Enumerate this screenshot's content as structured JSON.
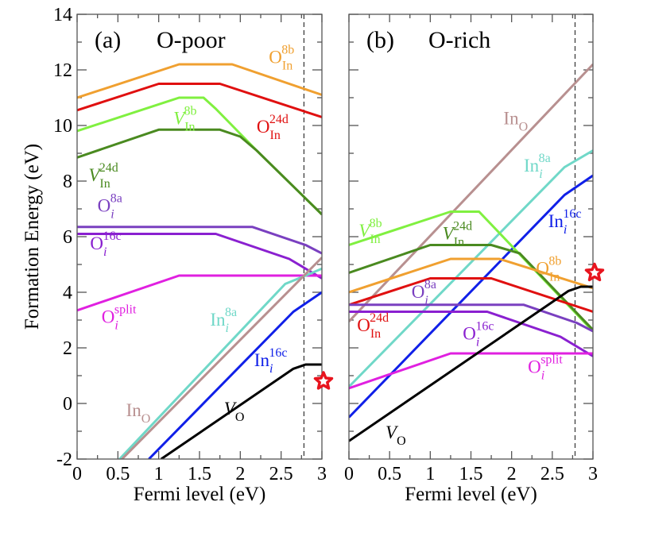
{
  "chart_data": [
    {
      "type": "line",
      "panel_label": "(a)",
      "title": "O-poor",
      "xlabel": "Fermi level (eV)",
      "ylabel": "Formation Energy (eV)",
      "xlim": [
        0,
        3
      ],
      "ylim": [
        -2,
        14
      ],
      "xticks": [
        "0",
        "0.5",
        "1",
        "1.5",
        "2",
        "2.5",
        "3"
      ],
      "yticks": [
        "-2",
        "0",
        "2",
        "4",
        "6",
        "8",
        "10",
        "12",
        "14"
      ],
      "vline_x": 2.78,
      "marker": {
        "shape": "star",
        "color": "#e8141e",
        "x": 3.0,
        "y": 0.8
      },
      "series": [
        {
          "name": "O_In^8b",
          "base": "O",
          "sub": "In",
          "sup": "8b",
          "color": "#f0a030",
          "label_at": [
            2.35,
            12.25
          ],
          "x": [
            0,
            1.25,
            1.9,
            3
          ],
          "y": [
            11.0,
            12.2,
            12.2,
            11.1
          ]
        },
        {
          "name": "O_In^24d",
          "base": "O",
          "sub": "In",
          "sup": "24d",
          "color": "#e01010",
          "label_at": [
            2.2,
            9.75
          ],
          "x": [
            0,
            1.0,
            1.75,
            3
          ],
          "y": [
            10.55,
            11.5,
            11.5,
            10.3
          ]
        },
        {
          "name": "V_In^8b",
          "base": "V",
          "sub": "In",
          "sup": "8b",
          "color": "#80f040",
          "italic": true,
          "label_at": [
            1.18,
            10.05
          ],
          "x": [
            0,
            1.25,
            1.55,
            1.7,
            2.2,
            3
          ],
          "y": [
            9.8,
            11.0,
            11.0,
            10.6,
            9.1,
            6.8
          ]
        },
        {
          "name": "V_In^24d",
          "base": "V",
          "sub": "In",
          "sup": "24d",
          "color": "#4a8a20",
          "italic": true,
          "label_at": [
            0.14,
            8.0
          ],
          "x": [
            0,
            1.0,
            1.75,
            2.0,
            2.2,
            3
          ],
          "y": [
            8.85,
            9.85,
            9.85,
            9.6,
            9.1,
            6.8
          ]
        },
        {
          "name": "O_i^8a",
          "base": "O",
          "sub": "i",
          "sup": "8a",
          "color": "#7a40c0",
          "italic_sub": true,
          "label_at": [
            0.25,
            6.9
          ],
          "x": [
            0,
            2.15,
            2.8,
            3
          ],
          "y": [
            6.35,
            6.35,
            5.7,
            5.4
          ]
        },
        {
          "name": "O_i^16c",
          "base": "O",
          "sub": "i",
          "sup": "16c",
          "color": "#8a20d0",
          "italic_sub": true,
          "label_at": [
            0.16,
            5.55
          ],
          "x": [
            0,
            1.7,
            2.6,
            3
          ],
          "y": [
            6.1,
            6.1,
            5.2,
            4.5
          ]
        },
        {
          "name": "O_i^split",
          "base": "O",
          "sub": "i",
          "sup": "split",
          "color": "#e020e0",
          "italic_sub": true,
          "label_at": [
            0.3,
            2.9
          ],
          "x": [
            0,
            1.25,
            3
          ],
          "y": [
            3.35,
            4.6,
            4.6
          ]
        },
        {
          "name": "In_i^8a",
          "base": "In",
          "sub": "i",
          "sup": "8a",
          "color": "#70d8c8",
          "italic_sub": true,
          "label_at": [
            1.63,
            2.8
          ],
          "x": [
            0.52,
            2.55,
            2.8,
            3
          ],
          "y": [
            -2.0,
            4.3,
            4.6,
            4.85
          ]
        },
        {
          "name": "In_O",
          "base": "In",
          "sub": "O",
          "sup": "",
          "color": "#b89090",
          "label_at": [
            0.6,
            -0.45
          ],
          "x": [
            0.55,
            3
          ],
          "y": [
            -2.0,
            5.25
          ]
        },
        {
          "name": "In_i^16c",
          "base": "In",
          "sub": "i",
          "sup": "16c",
          "color": "#1020e8",
          "italic_sub": true,
          "label_at": [
            2.17,
            1.35
          ],
          "x": [
            0.88,
            2.65,
            3
          ],
          "y": [
            -2.0,
            3.3,
            4.0
          ]
        },
        {
          "name": "V_O",
          "base": "V",
          "sub": "O",
          "sup": "",
          "color": "#000000",
          "italic": true,
          "label_at": [
            1.8,
            -0.4
          ],
          "x": [
            1.03,
            2.65,
            2.8,
            3
          ],
          "y": [
            -2.0,
            1.25,
            1.4,
            1.4
          ]
        }
      ]
    },
    {
      "type": "line",
      "panel_label": "(b)",
      "title": "O-rich",
      "xlabel": "Fermi level (eV)",
      "ylabel": "",
      "xlim": [
        0,
        3
      ],
      "ylim": [
        -2,
        14
      ],
      "xticks": [
        "0",
        "0.5",
        "1",
        "1.5",
        "2",
        "2.5",
        "3"
      ],
      "yticks": [],
      "vline_x": 2.78,
      "marker": {
        "shape": "star",
        "color": "#e8141e",
        "x": 3.0,
        "y": 4.7
      },
      "series": [
        {
          "name": "In_O",
          "base": "In",
          "sub": "O",
          "sup": "",
          "color": "#b89090",
          "label_at": [
            1.9,
            10.05
          ],
          "x": [
            0,
            3
          ],
          "y": [
            2.95,
            12.2
          ]
        },
        {
          "name": "In_i^8a",
          "base": "In",
          "sub": "i",
          "sup": "8a",
          "color": "#70d8c8",
          "italic_sub": true,
          "label_at": [
            2.15,
            8.35
          ],
          "x": [
            0,
            2.65,
            3
          ],
          "y": [
            0.6,
            8.5,
            9.1
          ]
        },
        {
          "name": "In_i^16c",
          "base": "In",
          "sub": "i",
          "sup": "16c",
          "color": "#1020e8",
          "italic_sub": true,
          "label_at": [
            2.45,
            6.35
          ],
          "x": [
            0,
            2.65,
            3
          ],
          "y": [
            -0.5,
            7.5,
            8.2
          ]
        },
        {
          "name": "V_In^8b",
          "base": "V",
          "sub": "In",
          "sup": "8b",
          "color": "#80f040",
          "italic": true,
          "label_at": [
            0.12,
            6.0
          ],
          "x": [
            0,
            1.25,
            1.6,
            3
          ],
          "y": [
            5.7,
            6.9,
            6.9,
            2.6
          ]
        },
        {
          "name": "V_In^24d",
          "base": "V",
          "sub": "In",
          "sup": "24d",
          "color": "#4a8a20",
          "italic": true,
          "label_at": [
            1.15,
            5.9
          ],
          "x": [
            0,
            1.0,
            1.75,
            2.1,
            3
          ],
          "y": [
            4.7,
            5.7,
            5.7,
            5.4,
            2.65
          ]
        },
        {
          "name": "O_In^8b",
          "base": "O",
          "sub": "In",
          "sup": "8b",
          "color": "#f0a030",
          "italic": false,
          "label_at": [
            2.3,
            4.65
          ],
          "x": [
            0,
            1.25,
            1.85,
            3
          ],
          "y": [
            4.0,
            5.2,
            5.2,
            4.15
          ]
        },
        {
          "name": "O_In^24d",
          "base": "O",
          "sub": "In",
          "sup": "24d",
          "color": "#e01010",
          "label_at": [
            0.1,
            2.6
          ],
          "x": [
            0,
            1.0,
            1.75,
            3
          ],
          "y": [
            3.55,
            4.5,
            4.5,
            3.3
          ]
        },
        {
          "name": "O_i^8a",
          "base": "O",
          "sub": "i",
          "sup": "8a",
          "color": "#7a40c0",
          "italic_sub": true,
          "label_at": [
            0.77,
            3.8
          ],
          "x": [
            0,
            2.15,
            2.8,
            3
          ],
          "y": [
            3.55,
            3.55,
            2.9,
            2.6
          ]
        },
        {
          "name": "O_i^16c",
          "base": "O",
          "sub": "i",
          "sup": "16c",
          "color": "#8a20d0",
          "italic_sub": true,
          "label_at": [
            1.4,
            2.3
          ],
          "x": [
            0,
            1.7,
            2.6,
            3
          ],
          "y": [
            3.3,
            3.3,
            2.4,
            1.7
          ]
        },
        {
          "name": "O_i^split",
          "base": "O",
          "sub": "i",
          "sup": "split",
          "color": "#e020e0",
          "italic_sub": true,
          "label_at": [
            2.2,
            1.1
          ],
          "x": [
            0,
            1.25,
            3
          ],
          "y": [
            0.55,
            1.8,
            1.8
          ]
        },
        {
          "name": "V_O",
          "base": "V",
          "sub": "O",
          "sup": "",
          "color": "#000000",
          "italic": true,
          "label_at": [
            0.45,
            -1.25
          ],
          "x": [
            0,
            2.7,
            2.85,
            3
          ],
          "y": [
            -1.35,
            4.05,
            4.2,
            4.2
          ]
        }
      ]
    }
  ]
}
